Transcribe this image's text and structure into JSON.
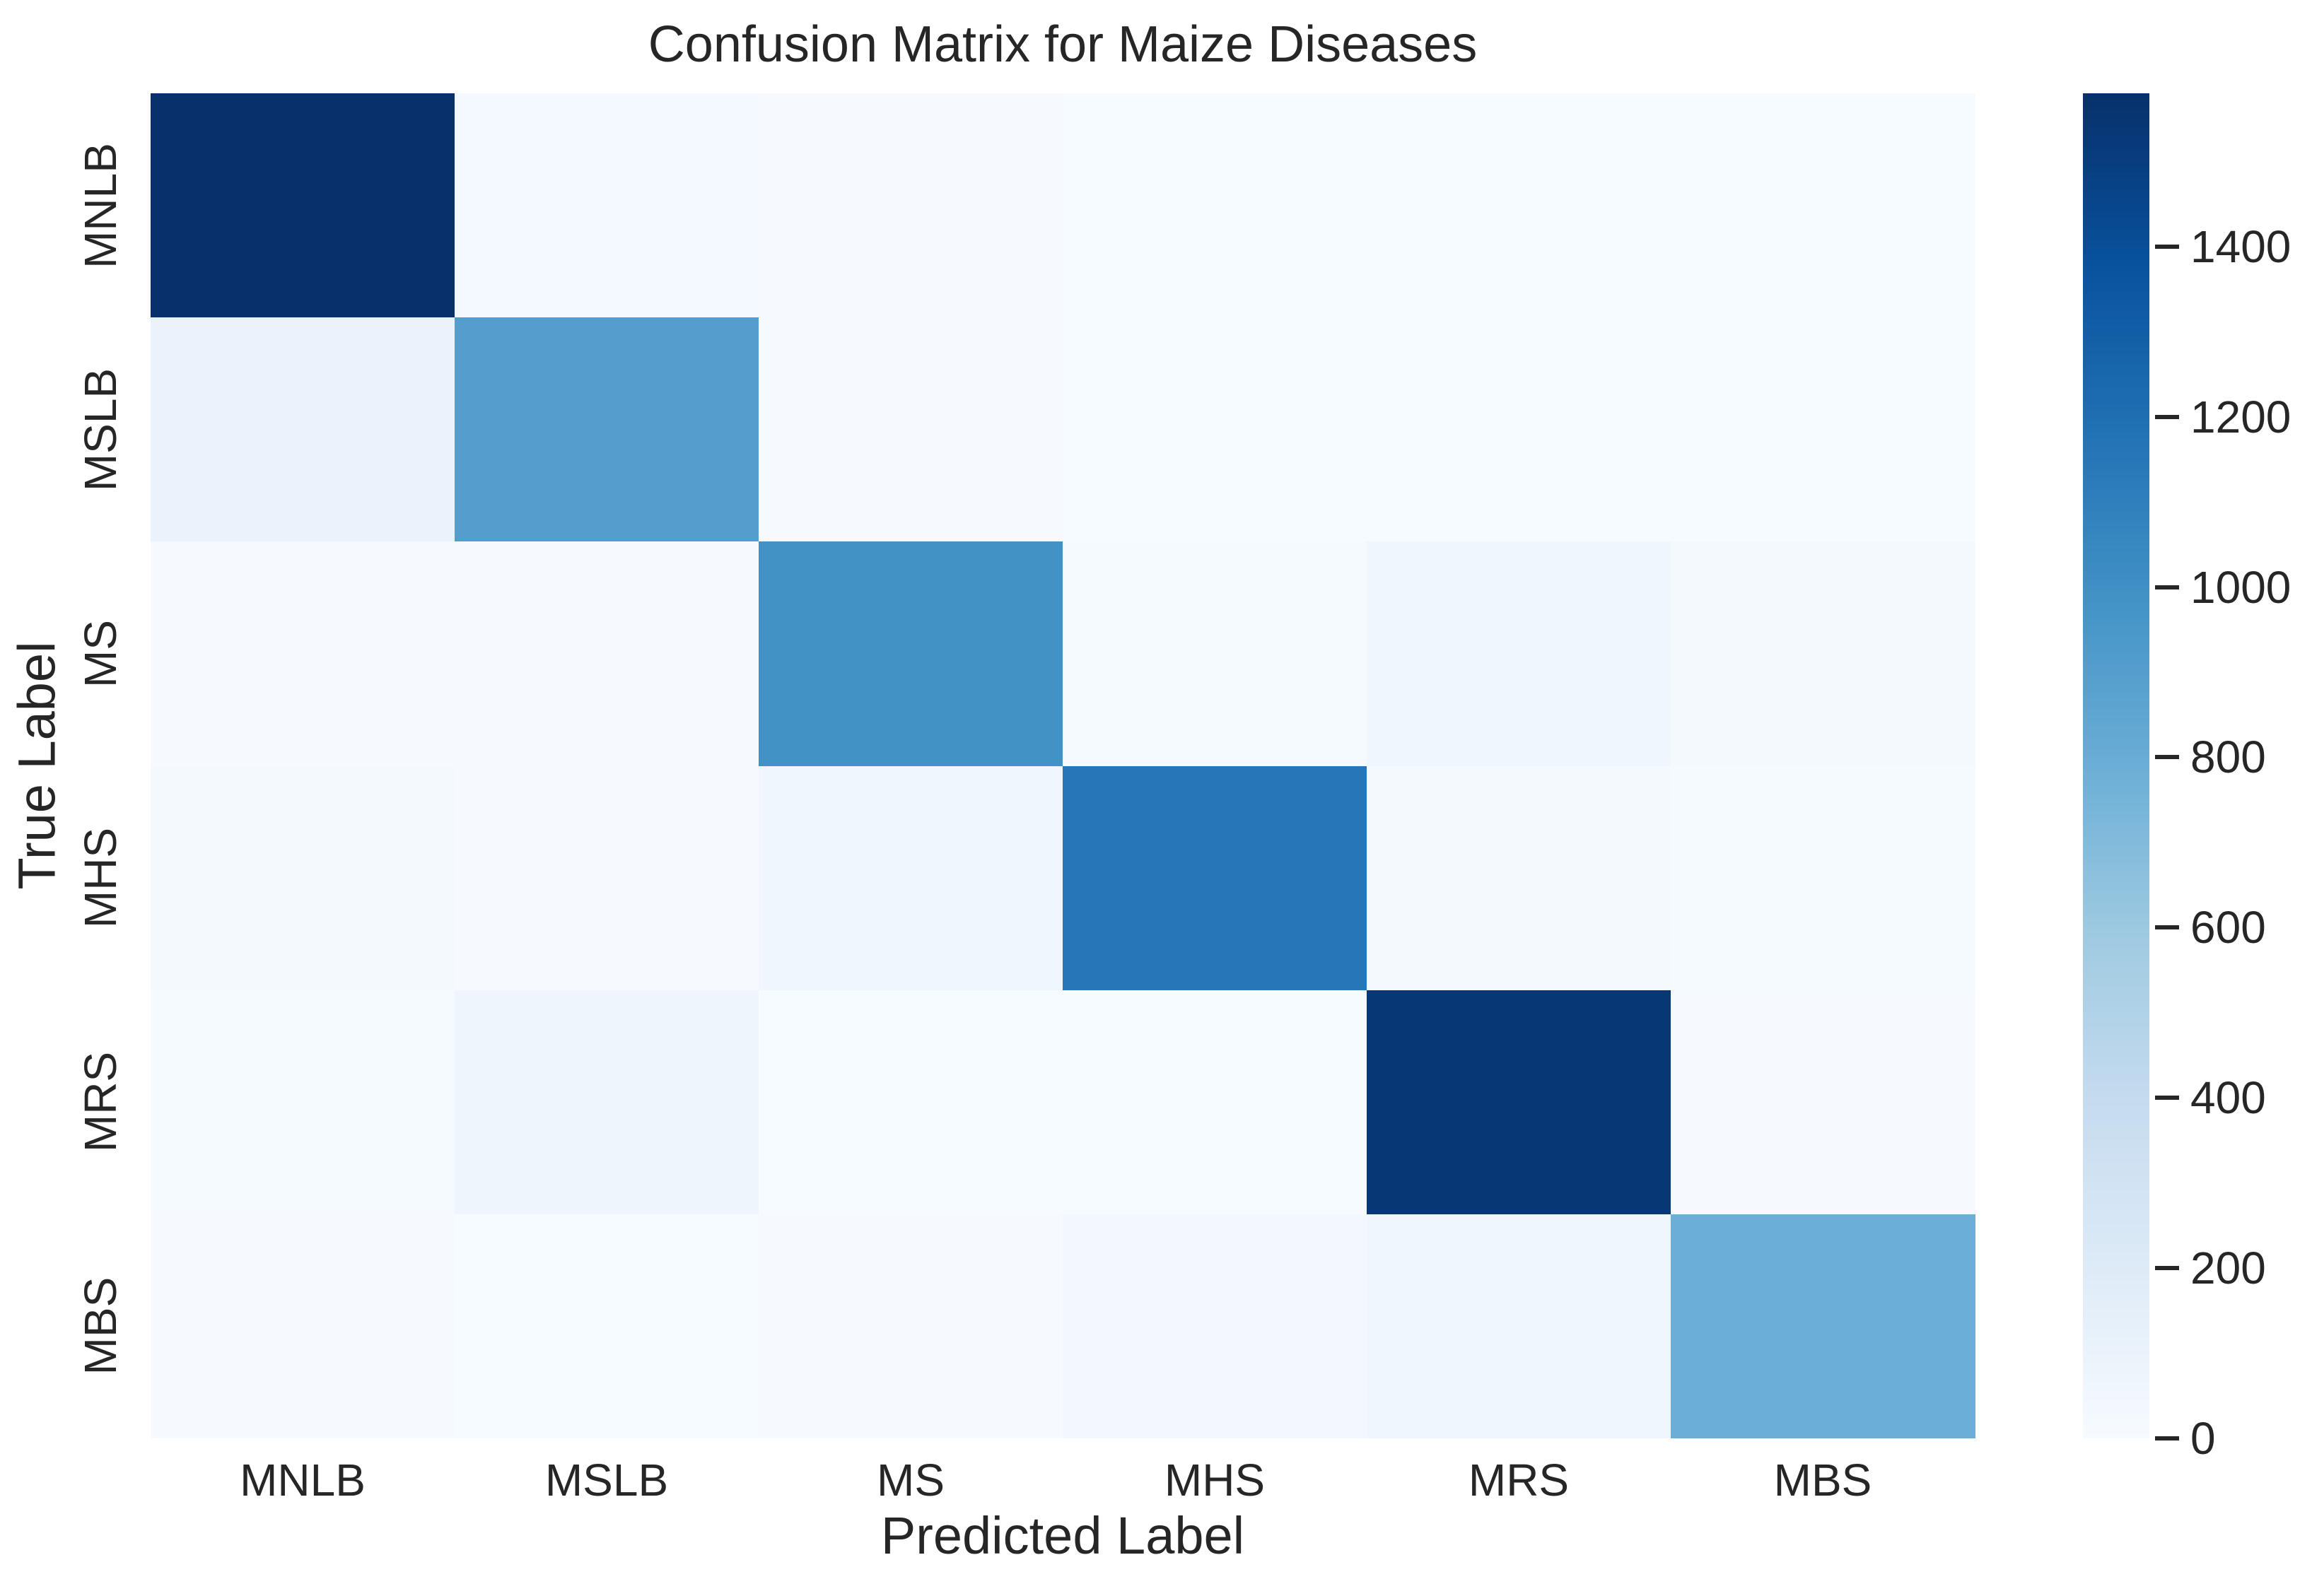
{
  "chart_data": {
    "type": "heatmap",
    "title": "Confusion Matrix for Maize Diseases",
    "xlabel": "Predicted Label",
    "ylabel": "True Label",
    "x_categories": [
      "MNLB",
      "MSLB",
      "MS",
      "MHS",
      "MRS",
      "MBS"
    ],
    "y_categories": [
      "MNLB",
      "MSLB",
      "MS",
      "MHS",
      "MRS",
      "MBS"
    ],
    "matrix": [
      [
        1580,
        30,
        8,
        6,
        6,
        6
      ],
      [
        105,
        900,
        8,
        5,
        5,
        5
      ],
      [
        10,
        8,
        990,
        12,
        60,
        20
      ],
      [
        20,
        8,
        60,
        1150,
        25,
        18
      ],
      [
        15,
        75,
        5,
        5,
        1540,
        10
      ],
      [
        10,
        5,
        8,
        35,
        60,
        790
      ]
    ],
    "vmin": 0,
    "vmax": 1580,
    "colormap": "Blues",
    "colormap_anchors": [
      {
        "pos": 0.0,
        "color": "#f7fbff"
      },
      {
        "pos": 0.125,
        "color": "#deebf7"
      },
      {
        "pos": 0.25,
        "color": "#c6dbef"
      },
      {
        "pos": 0.375,
        "color": "#9ecae1"
      },
      {
        "pos": 0.5,
        "color": "#6baed6"
      },
      {
        "pos": 0.625,
        "color": "#4292c6"
      },
      {
        "pos": 0.75,
        "color": "#2171b5"
      },
      {
        "pos": 0.875,
        "color": "#08519c"
      },
      {
        "pos": 1.0,
        "color": "#08306b"
      }
    ],
    "colorbar_ticks": [
      0,
      200,
      400,
      600,
      800,
      1000,
      1200,
      1400
    ],
    "colorbar_position": "right",
    "grid": false,
    "text_color": "#262626",
    "background_color": "#ffffff"
  }
}
